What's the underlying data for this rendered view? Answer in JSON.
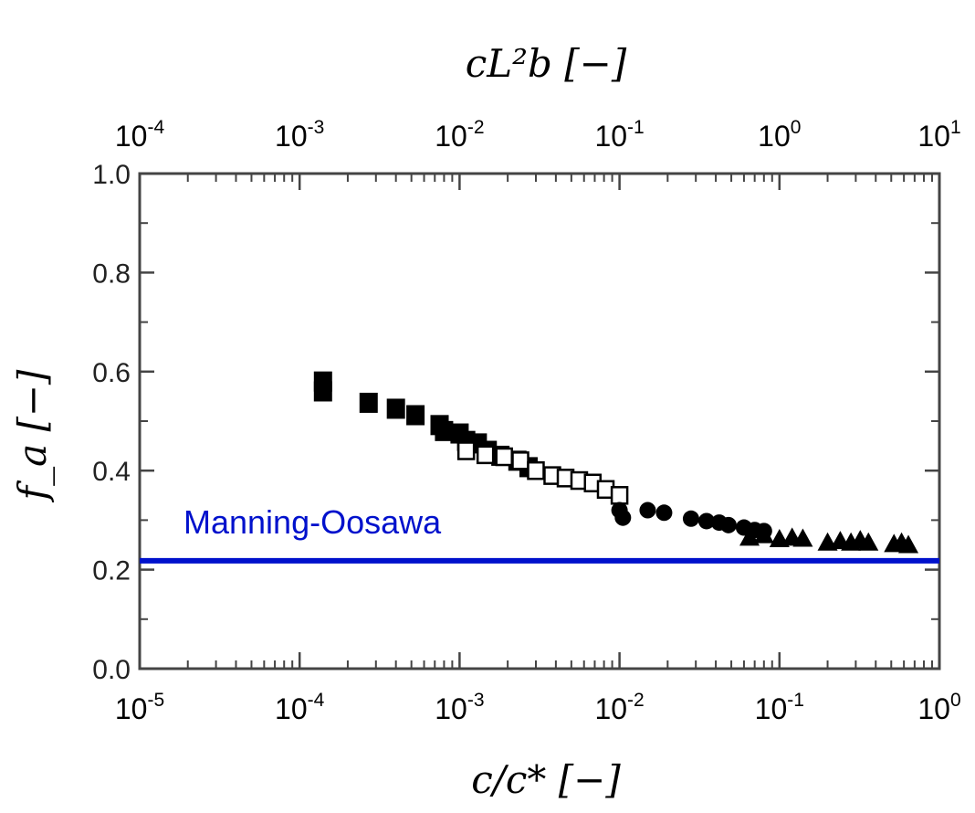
{
  "chart_data": {
    "type": "scatter",
    "title": "",
    "xlabel": "c/c* [−]",
    "ylabel": "f_a [−]",
    "top_xlabel": "cL²b [−]",
    "xscale": "log",
    "xlim": [
      1e-05,
      1
    ],
    "ylim": [
      0,
      1
    ],
    "grid": false,
    "x_ticks": [
      {
        "value": 1e-05,
        "base": "10",
        "exp": "-5"
      },
      {
        "value": 0.0001,
        "base": "10",
        "exp": "-4"
      },
      {
        "value": 0.001,
        "base": "10",
        "exp": "-3"
      },
      {
        "value": 0.01,
        "base": "10",
        "exp": "-2"
      },
      {
        "value": 0.1,
        "base": "10",
        "exp": "-1"
      },
      {
        "value": 1,
        "base": "10",
        "exp": "0"
      }
    ],
    "top_x_ticks": [
      {
        "value": 0.0001,
        "base": "10",
        "exp": "-4"
      },
      {
        "value": 0.001,
        "base": "10",
        "exp": "-3"
      },
      {
        "value": 0.01,
        "base": "10",
        "exp": "-2"
      },
      {
        "value": 0.1,
        "base": "10",
        "exp": "-1"
      },
      {
        "value": 1,
        "base": "10",
        "exp": "0"
      },
      {
        "value": 10,
        "base": "10",
        "exp": "1"
      }
    ],
    "top_axis_factor": 10,
    "y_ticks": [
      {
        "value": 0.0,
        "label": "0.0"
      },
      {
        "value": 0.2,
        "label": "0.2"
      },
      {
        "value": 0.4,
        "label": "0.4"
      },
      {
        "value": 0.6,
        "label": "0.6"
      },
      {
        "value": 0.8,
        "label": "0.8"
      },
      {
        "value": 1.0,
        "label": "1.0"
      }
    ],
    "series": [
      {
        "name": "filled squares",
        "marker": "square-filled",
        "color": "#000000",
        "x": [
          0.00014,
          0.00014,
          0.00027,
          0.0004,
          0.00053,
          0.00075,
          0.0008,
          0.001,
          0.0011,
          0.0013,
          0.0015,
          0.0018,
          0.0023,
          0.0027
        ],
        "y": [
          0.58,
          0.56,
          0.537,
          0.525,
          0.512,
          0.492,
          0.48,
          0.475,
          0.46,
          0.455,
          0.44,
          0.43,
          0.42,
          0.407
        ]
      },
      {
        "name": "open squares",
        "marker": "square-open",
        "color": "#000000",
        "x": [
          0.0011,
          0.00145,
          0.0019,
          0.0024,
          0.003,
          0.0038,
          0.0046,
          0.0056,
          0.0068,
          0.0082,
          0.01
        ],
        "y": [
          0.44,
          0.432,
          0.428,
          0.42,
          0.4,
          0.39,
          0.385,
          0.38,
          0.375,
          0.362,
          0.35
        ]
      },
      {
        "name": "filled circles",
        "marker": "circle-filled",
        "color": "#000000",
        "x": [
          0.01,
          0.0105,
          0.015,
          0.019,
          0.028,
          0.035,
          0.042,
          0.048,
          0.06,
          0.07,
          0.08
        ],
        "y": [
          0.32,
          0.305,
          0.32,
          0.315,
          0.303,
          0.298,
          0.295,
          0.29,
          0.285,
          0.28,
          0.278
        ]
      },
      {
        "name": "filled triangles",
        "marker": "triangle-filled",
        "color": "#000000",
        "x": [
          0.065,
          0.08,
          0.1,
          0.12,
          0.14,
          0.2,
          0.24,
          0.28,
          0.32,
          0.36,
          0.52,
          0.58,
          0.64
        ],
        "y": [
          0.265,
          0.27,
          0.262,
          0.265,
          0.263,
          0.255,
          0.258,
          0.255,
          0.26,
          0.255,
          0.252,
          0.255,
          0.25
        ]
      }
    ],
    "reference_lines": [
      {
        "name": "Manning-Oosawa",
        "y": 0.218,
        "color": "#0011cc",
        "label": "Manning-Oosawa",
        "label_x": 1e-05
      }
    ]
  }
}
